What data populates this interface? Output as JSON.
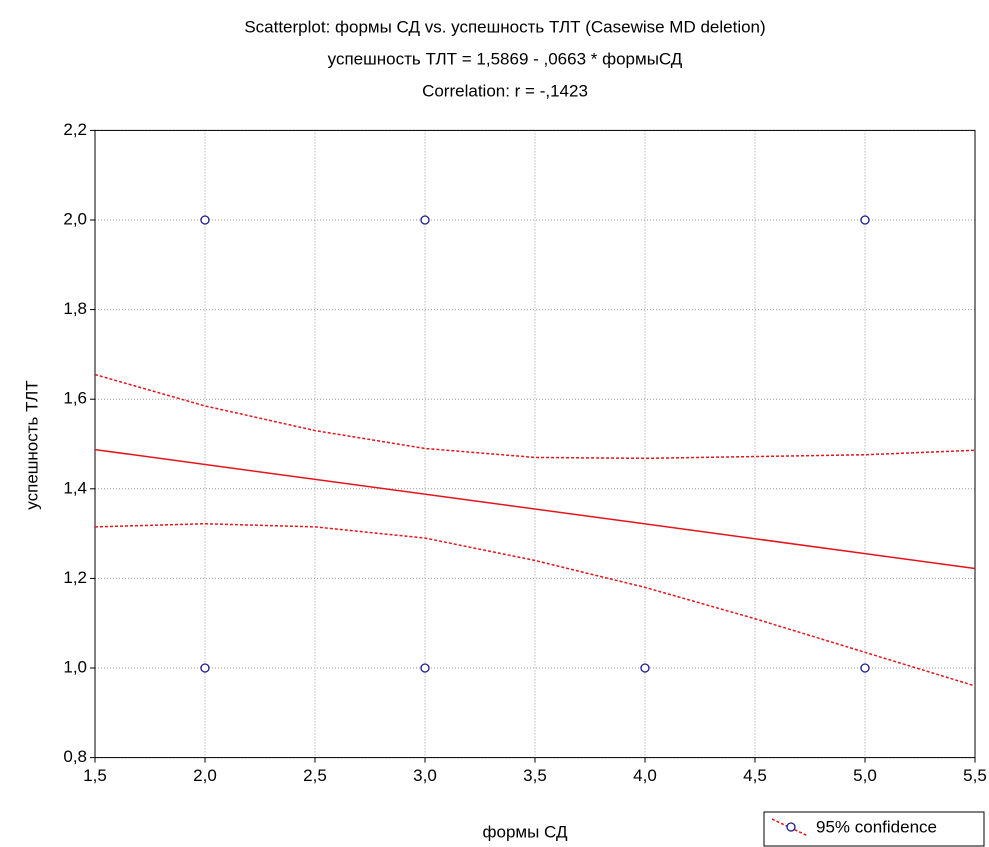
{
  "chart_data": {
    "type": "scatter",
    "title": "Scatterplot: формы СД vs. успешность ТЛТ (Casewise MD deletion)",
    "subtitle": [
      "успешность ТЛТ = 1,5869 - ,0663  * формыСД",
      "Correlation: r = -,1423"
    ],
    "x_label": "формы СД",
    "y_label": "успешность ТЛТ",
    "xlim": [
      1.5,
      5.5
    ],
    "ylim": [
      0.8,
      2.2
    ],
    "xticks": [
      {
        "value": 1.5,
        "label": "1,5"
      },
      {
        "value": 2,
        "label": "2,0"
      },
      {
        "value": 2.5,
        "label": "2,5"
      },
      {
        "value": 3,
        "label": "3,0"
      },
      {
        "value": 3.5,
        "label": "3,5"
      },
      {
        "value": 4,
        "label": "4,0"
      },
      {
        "value": 4.5,
        "label": "4,5"
      },
      {
        "value": 5,
        "label": "5,0"
      },
      {
        "value": 5.5,
        "label": "5,5"
      }
    ],
    "yticks": [
      {
        "value": 0.8,
        "label": "0,8"
      },
      {
        "value": 1,
        "label": "1,0"
      },
      {
        "value": 1.2,
        "label": "1,2"
      },
      {
        "value": 1.4,
        "label": "1,4"
      },
      {
        "value": 1.6,
        "label": "1,6"
      },
      {
        "value": 1.8,
        "label": "1,8"
      },
      {
        "value": 2,
        "label": "2,0"
      },
      {
        "value": 2.2,
        "label": "2,2"
      }
    ],
    "grid": true,
    "points": {
      "x": [
        2,
        3,
        5,
        2,
        3,
        4,
        5
      ],
      "values": [
        2,
        2,
        2,
        1,
        1,
        1,
        1
      ],
      "color": "#1a1a8c"
    },
    "fit": {
      "x": [
        1.5,
        5.5
      ],
      "values": [
        1.4875,
        1.2222
      ],
      "color": "#e3141c"
    },
    "confidence": {
      "name": "95% confidence",
      "color": "#e3141c",
      "x": [
        1.5,
        2,
        2.5,
        3,
        3.5,
        4,
        4.5,
        5,
        5.5
      ],
      "upper": [
        1.655,
        1.585,
        1.53,
        1.49,
        1.47,
        1.468,
        1.472,
        1.476,
        1.486
      ],
      "lower": [
        1.315,
        1.322,
        1.315,
        1.29,
        1.24,
        1.18,
        1.11,
        1.035,
        0.96
      ]
    },
    "legend": "lower right"
  }
}
